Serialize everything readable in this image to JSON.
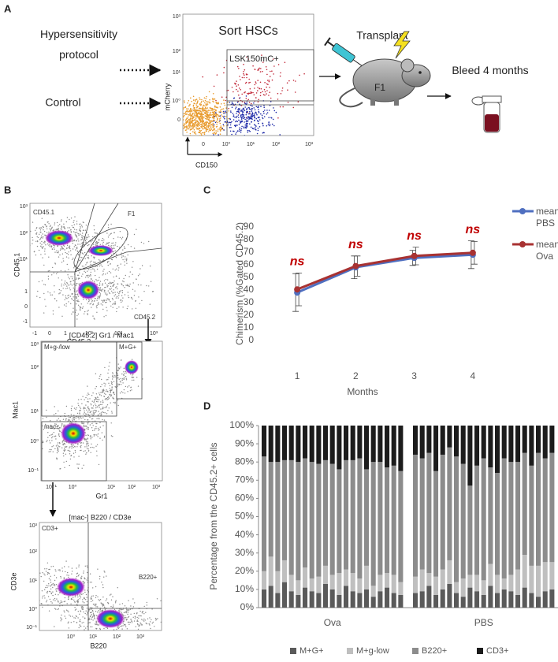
{
  "panel_a": {
    "letter": "A",
    "conditions": [
      "Hypersensitivity protocol",
      "Control"
    ],
    "plot_title": "Sort HSCs",
    "gate": "LSK150mC+",
    "y_label": "mCherry",
    "x_label": "CD150",
    "y_ticks": [
      "10³",
      "10²",
      "10¹",
      "10⁰",
      "0"
    ],
    "x_ticks": [
      "0",
      "10⁰",
      "10¹",
      "10²",
      "10³"
    ],
    "transplant": "Transplant",
    "recipient": "F1",
    "bleed": "Bleed 4 months"
  },
  "panel_b": {
    "letter": "B",
    "plot1": {
      "gates": [
        "CD45.1",
        "F1",
        "CD45.2"
      ],
      "y_label": "CD45.1",
      "x_label": "CD45.2",
      "y_ticks": [
        "10³",
        "10²",
        "10¹",
        "1",
        "0",
        "-1"
      ],
      "x_ticks": [
        "-1",
        "0",
        "1",
        "10¹",
        "10²",
        "10³"
      ]
    },
    "plot2": {
      "title": "[CD45.2] Gr1 / Mac1",
      "gates": [
        "M+g-/low",
        "M+G+",
        "mac-"
      ],
      "y_label": "Mac1",
      "x_label": "Gr1",
      "y_ticks": [
        "10³",
        "10²",
        "10¹",
        "10⁰",
        "10⁻¹"
      ],
      "x_ticks": [
        "10⁻¹",
        "10⁰",
        "10¹",
        "10²",
        "10³"
      ]
    },
    "plot3": {
      "title": "[mac-] B220 / CD3e",
      "gates": [
        "CD3+",
        "B220+"
      ],
      "y_label": "CD3e",
      "x_label": "B220",
      "y_ticks": [
        "10³",
        "10²",
        "10¹",
        "10⁰",
        "10⁻¹"
      ],
      "x_ticks": [
        "10⁰",
        "10¹",
        "10²",
        "10³"
      ]
    }
  },
  "chart_data": [
    {
      "panel": "C",
      "type": "line",
      "x": [
        1,
        2,
        3,
        4
      ],
      "xlim": [
        0.5,
        4.5
      ],
      "xticks": [
        1,
        2,
        3,
        4
      ],
      "ylim": [
        0,
        90
      ],
      "yticks": [
        0,
        10,
        20,
        30,
        40,
        50,
        60,
        70,
        80,
        90
      ],
      "y_label": "Chimerism (%Gated CD45.2)",
      "x_label": "Months",
      "grid": false,
      "legend": "upper right",
      "annotations": [
        "ns",
        "ns",
        "ns",
        "ns"
      ],
      "annotation_color": "#c00000",
      "series": [
        {
          "name": "mean PBS",
          "color": "#4f6fc0",
          "values": [
            38,
            58,
            65.5,
            68
          ],
          "errors": [
            15,
            9,
            6,
            11
          ]
        },
        {
          "name": "mean Ova",
          "color": "#a83232",
          "values": [
            40.5,
            59,
            67,
            69.5
          ],
          "errors": [
            13,
            8,
            7,
            9
          ]
        }
      ]
    },
    {
      "panel": "D",
      "type": "stacked_bar",
      "categories": [
        null,
        null,
        null,
        null,
        null,
        null,
        null,
        null,
        null,
        null,
        null,
        null,
        null,
        null,
        null,
        null,
        null,
        null,
        null,
        null,
        null,
        null,
        null,
        null,
        null,
        null,
        null,
        null,
        null,
        null,
        null,
        null,
        null,
        null,
        null,
        null,
        null,
        null,
        null,
        null,
        null,
        null
      ],
      "group_labels": [
        "Ova",
        "PBS"
      ],
      "ylim": [
        0,
        100
      ],
      "yticks": [
        {
          "value": 0,
          "label": "0%"
        },
        {
          "value": 10,
          "label": "10%"
        },
        {
          "value": 20,
          "label": "20%"
        },
        {
          "value": 30,
          "label": "30%"
        },
        {
          "value": 40,
          "label": "40%"
        },
        {
          "value": 50,
          "label": "50%"
        },
        {
          "value": 60,
          "label": "60%"
        },
        {
          "value": 70,
          "label": "70%"
        },
        {
          "value": 80,
          "label": "80%"
        },
        {
          "value": 90,
          "label": "90%"
        },
        {
          "value": 100,
          "label": "100%"
        }
      ],
      "y_label": "Percentage from the CD45.2+ cells",
      "grid": false,
      "legend": "bottom",
      "series": [
        {
          "name": "M+G+",
          "color": "#5a5a5a",
          "values": [
            10,
            12,
            8,
            14,
            9,
            7,
            11,
            9,
            8,
            13,
            10,
            7,
            12,
            9,
            8,
            10,
            6,
            9,
            11,
            8,
            7,
            8,
            9,
            12,
            7,
            10,
            13,
            8,
            6,
            11,
            9,
            7,
            12,
            8,
            10,
            9,
            7,
            11,
            8,
            6,
            9,
            10
          ]
        },
        {
          "name": "M+g-low",
          "color": "#bfbfbf",
          "values": [
            10,
            16,
            12,
            12,
            9,
            8,
            11,
            7,
            9,
            10,
            8,
            12,
            9,
            10,
            8,
            13,
            6,
            9,
            8,
            10,
            7,
            9,
            12,
            7,
            10,
            11,
            13,
            6,
            10,
            7,
            9,
            8,
            12,
            10,
            6,
            9,
            14,
            18,
            15,
            17,
            16,
            15
          ]
        },
        {
          "name": "B220+",
          "color": "#8c8c8c",
          "values": [
            63,
            52,
            60,
            55,
            63,
            65,
            60,
            64,
            62,
            58,
            61,
            57,
            60,
            62,
            66,
            53,
            68,
            62,
            58,
            60,
            61,
            67,
            61,
            66,
            58,
            63,
            62,
            69,
            63,
            49,
            60,
            67,
            53,
            56,
            66,
            62,
            59,
            56,
            55,
            62,
            57,
            60
          ]
        },
        {
          "name": "CD3+",
          "color": "#1c1c1c",
          "values": [
            17,
            20,
            20,
            19,
            19,
            20,
            18,
            20,
            21,
            19,
            21,
            24,
            19,
            19,
            18,
            24,
            20,
            20,
            23,
            22,
            25,
            16,
            18,
            15,
            25,
            16,
            12,
            17,
            21,
            33,
            22,
            18,
            23,
            26,
            18,
            20,
            20,
            15,
            22,
            15,
            18,
            15
          ]
        }
      ]
    }
  ]
}
